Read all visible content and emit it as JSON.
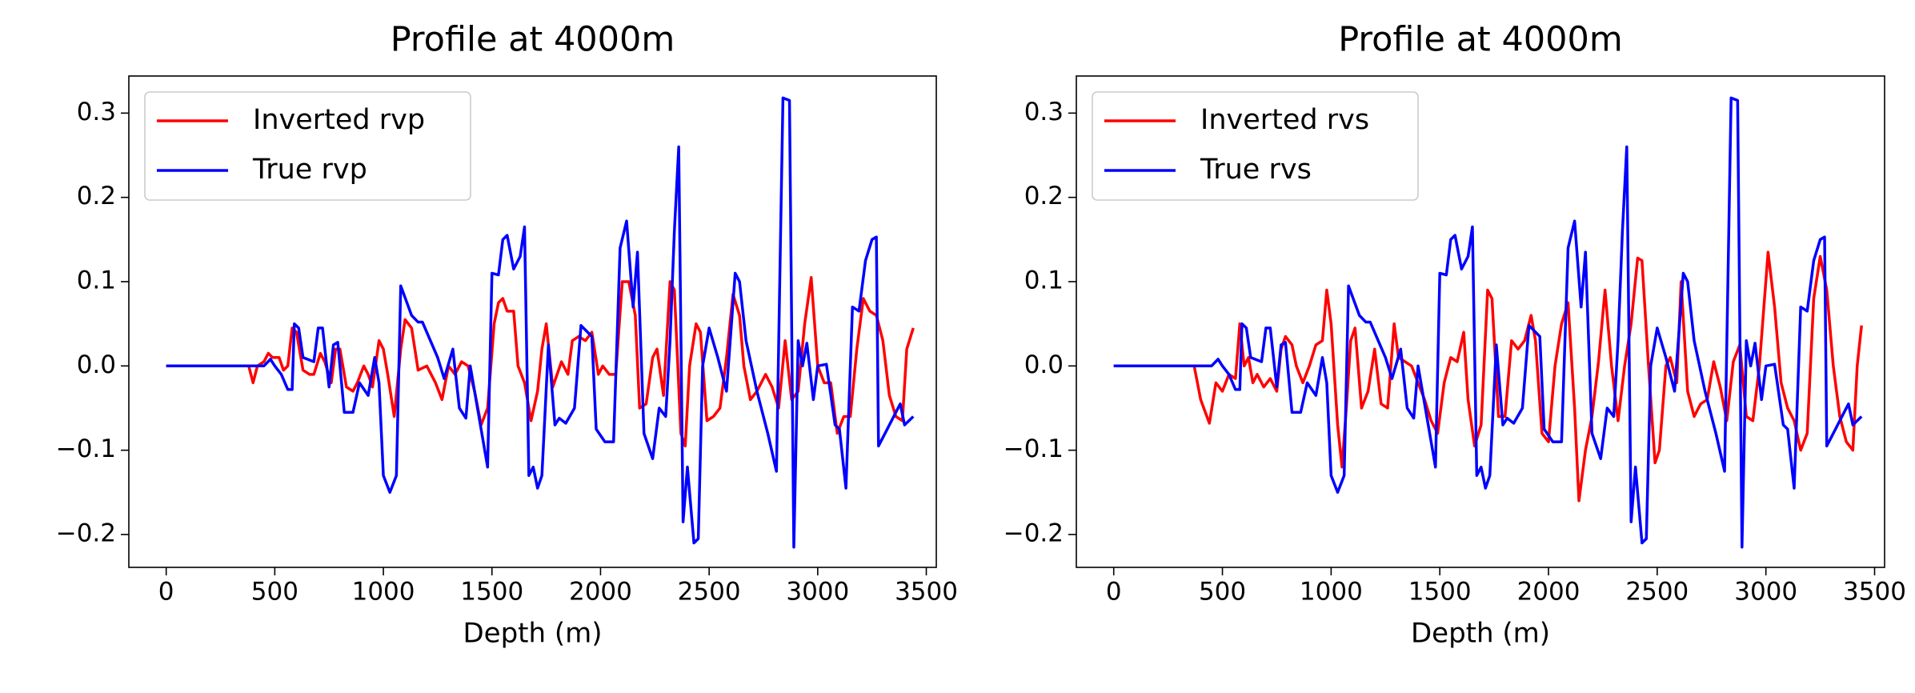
{
  "chart_data": [
    {
      "type": "line",
      "title": "Profile at 4000m",
      "xlabel": "Depth (m)",
      "xlim": [
        -172,
        3546
      ],
      "ylim": [
        -0.239,
        0.344
      ],
      "xticks": [
        0,
        500,
        1000,
        1500,
        2000,
        2500,
        3000,
        3500
      ],
      "yticks": [
        {
          "value": -0.2,
          "label": "−0.2"
        },
        {
          "value": -0.1,
          "label": "−0.1"
        },
        {
          "value": 0,
          "label": "0.0"
        },
        0.1,
        0.2,
        0.3
      ],
      "legend": "upper left",
      "series": [
        {
          "name": "Inverted rvp",
          "color": "#ff0000",
          "x": [
            0,
            380,
            400,
            420,
            450,
            470,
            490,
            520,
            540,
            560,
            580,
            600,
            630,
            660,
            680,
            710,
            730,
            760,
            780,
            800,
            830,
            860,
            880,
            910,
            930,
            950,
            980,
            1000,
            1020,
            1050,
            1080,
            1100,
            1130,
            1160,
            1200,
            1240,
            1270,
            1300,
            1330,
            1360,
            1390,
            1420,
            1450,
            1480,
            1510,
            1530,
            1550,
            1570,
            1600,
            1620,
            1650,
            1680,
            1710,
            1730,
            1750,
            1780,
            1800,
            1820,
            1850,
            1870,
            1900,
            1930,
            1960,
            1990,
            2010,
            2040,
            2070,
            2100,
            2130,
            2160,
            2180,
            2210,
            2240,
            2260,
            2290,
            2320,
            2340,
            2370,
            2390,
            2410,
            2440,
            2460,
            2490,
            2520,
            2550,
            2580,
            2610,
            2640,
            2660,
            2690,
            2720,
            2760,
            2790,
            2820,
            2850,
            2880,
            2910,
            2940,
            2970,
            3000,
            3030,
            3060,
            3090,
            3120,
            3150,
            3180,
            3210,
            3240,
            3270,
            3300,
            3330,
            3360,
            3390,
            3410,
            3440
          ],
          "values": [
            0,
            0,
            -0.02,
            0,
            0.005,
            0.015,
            0.01,
            0.01,
            -0.005,
            0,
            0.045,
            0.04,
            -0.005,
            -0.01,
            -0.01,
            0.015,
            0.005,
            -0.02,
            0.02,
            0.02,
            -0.025,
            -0.03,
            -0.02,
            0,
            -0.01,
            -0.025,
            0.03,
            0.02,
            -0.01,
            -0.06,
            0.02,
            0.055,
            0.045,
            -0.005,
            0,
            -0.02,
            -0.04,
            0,
            -0.01,
            0.005,
            0,
            -0.03,
            -0.07,
            -0.05,
            0.05,
            0.075,
            0.08,
            0.065,
            0.065,
            0,
            -0.02,
            -0.065,
            -0.03,
            0.02,
            0.05,
            -0.025,
            -0.01,
            0.005,
            -0.01,
            0.03,
            0.035,
            0.03,
            0.04,
            -0.01,
            0,
            -0.01,
            -0.01,
            0.1,
            0.1,
            0.06,
            -0.05,
            -0.045,
            0.01,
            0.02,
            -0.035,
            0.1,
            0.09,
            -0.08,
            -0.095,
            0,
            0.05,
            0.04,
            -0.065,
            -0.06,
            -0.05,
            0.01,
            0.085,
            0.06,
            0,
            -0.04,
            -0.03,
            -0.01,
            -0.025,
            -0.05,
            0.03,
            -0.04,
            -0.03,
            0.05,
            0.105,
            0,
            -0.02,
            -0.02,
            -0.08,
            -0.06,
            -0.06,
            0.02,
            0.08,
            0.065,
            0.06,
            0.03,
            -0.035,
            -0.06,
            -0.065,
            0.02,
            0.045
          ]
        },
        {
          "name": "True rvp",
          "color": "#0000ff",
          "x": [
            0,
            450,
            480,
            500,
            530,
            560,
            580,
            590,
            610,
            630,
            680,
            700,
            720,
            750,
            770,
            790,
            820,
            860,
            890,
            930,
            960,
            980,
            1000,
            1030,
            1060,
            1080,
            1130,
            1160,
            1180,
            1250,
            1280,
            1320,
            1350,
            1380,
            1400,
            1440,
            1480,
            1500,
            1530,
            1550,
            1570,
            1600,
            1630,
            1650,
            1670,
            1690,
            1710,
            1730,
            1760,
            1790,
            1810,
            1840,
            1880,
            1910,
            1960,
            1980,
            2020,
            2060,
            2090,
            2120,
            2150,
            2170,
            2200,
            2240,
            2270,
            2300,
            2320,
            2340,
            2360,
            2380,
            2400,
            2430,
            2450,
            2470,
            2500,
            2540,
            2580,
            2620,
            2640,
            2670,
            2720,
            2770,
            2810,
            2840,
            2870,
            2890,
            2910,
            2930,
            2950,
            2980,
            3000,
            3040,
            3080,
            3100,
            3130,
            3160,
            3190,
            3220,
            3250,
            3270,
            3280,
            3320,
            3350,
            3380,
            3400,
            3440
          ],
          "values": [
            0,
            0,
            0.008,
            0,
            -0.01,
            -0.028,
            -0.028,
            0.05,
            0.045,
            0.01,
            0.005,
            0.045,
            0.045,
            -0.025,
            0.025,
            0.028,
            -0.055,
            -0.055,
            -0.02,
            -0.035,
            0.01,
            -0.02,
            -0.13,
            -0.15,
            -0.13,
            0.095,
            0.06,
            0.052,
            0.052,
            0.01,
            -0.015,
            0.02,
            -0.05,
            -0.062,
            0,
            -0.06,
            -0.12,
            0.11,
            0.108,
            0.15,
            0.155,
            0.115,
            0.13,
            0.165,
            -0.13,
            -0.12,
            -0.145,
            -0.13,
            0.025,
            -0.07,
            -0.062,
            -0.068,
            -0.05,
            0.048,
            0.035,
            -0.075,
            -0.09,
            -0.09,
            0.14,
            0.172,
            0.07,
            0.135,
            -0.08,
            -0.11,
            -0.05,
            -0.06,
            0.03,
            0.16,
            0.26,
            -0.185,
            -0.12,
            -0.21,
            -0.205,
            0,
            0.045,
            0.01,
            -0.03,
            0.11,
            0.1,
            0.03,
            -0.03,
            -0.08,
            -0.125,
            0.318,
            0.315,
            -0.215,
            0.03,
            0,
            0.027,
            -0.04,
            0,
            0.002,
            -0.07,
            -0.075,
            -0.145,
            0.07,
            0.065,
            0.125,
            0.15,
            0.153,
            -0.095,
            -0.075,
            -0.06,
            -0.045,
            -0.07,
            -0.06
          ]
        }
      ]
    },
    {
      "type": "line",
      "title": "Profile at 4000m",
      "xlabel": "Depth (m)",
      "xlim": [
        -172,
        3546
      ],
      "ylim": [
        -0.239,
        0.344
      ],
      "xticks": [
        0,
        500,
        1000,
        1500,
        2000,
        2500,
        3000,
        3500
      ],
      "yticks": [
        {
          "value": -0.2,
          "label": "−0.2"
        },
        {
          "value": -0.1,
          "label": "−0.1"
        },
        {
          "value": 0,
          "label": "0.0"
        },
        0.1,
        0.2,
        0.3
      ],
      "legend": "upper left",
      "series": [
        {
          "name": "Inverted rvs",
          "color": "#ff0000",
          "x": [
            0,
            370,
            400,
            440,
            470,
            500,
            530,
            560,
            580,
            600,
            620,
            640,
            660,
            690,
            720,
            750,
            770,
            790,
            820,
            840,
            870,
            900,
            930,
            960,
            980,
            1000,
            1030,
            1050,
            1070,
            1090,
            1110,
            1140,
            1170,
            1200,
            1230,
            1260,
            1290,
            1310,
            1340,
            1370,
            1400,
            1430,
            1460,
            1490,
            1520,
            1550,
            1580,
            1610,
            1630,
            1660,
            1690,
            1720,
            1740,
            1770,
            1800,
            1830,
            1860,
            1890,
            1920,
            1940,
            1970,
            2000,
            2030,
            2060,
            2090,
            2120,
            2140,
            2170,
            2200,
            2230,
            2260,
            2290,
            2320,
            2350,
            2380,
            2410,
            2430,
            2460,
            2490,
            2510,
            2540,
            2560,
            2590,
            2610,
            2640,
            2670,
            2700,
            2730,
            2760,
            2790,
            2820,
            2850,
            2880,
            2910,
            2940,
            2970,
            3010,
            3040,
            3070,
            3100,
            3130,
            3160,
            3190,
            3220,
            3250,
            3280,
            3310,
            3340,
            3370,
            3400,
            3420,
            3440
          ],
          "values": [
            0,
            0,
            -0.04,
            -0.068,
            -0.02,
            -0.03,
            -0.01,
            -0.015,
            0.05,
            0,
            0.01,
            -0.02,
            -0.01,
            -0.025,
            -0.015,
            -0.03,
            0.02,
            0.035,
            0.025,
            0,
            -0.02,
            0,
            0.025,
            0.03,
            0.09,
            0.05,
            -0.07,
            -0.12,
            -0.05,
            0.03,
            0.045,
            -0.05,
            -0.03,
            0.02,
            -0.045,
            -0.05,
            0.05,
            0.01,
            0.005,
            0,
            -0.02,
            -0.04,
            -0.065,
            -0.08,
            -0.02,
            0.01,
            0.005,
            0.04,
            -0.04,
            -0.095,
            -0.07,
            0.09,
            0.08,
            -0.06,
            -0.06,
            0.03,
            0.02,
            0.03,
            0.06,
            0.03,
            -0.08,
            -0.09,
            0,
            0.05,
            0.075,
            -0.05,
            -0.16,
            -0.1,
            -0.06,
            0.005,
            0.09,
            0,
            -0.065,
            0,
            0.05,
            0.128,
            0.125,
            0,
            -0.115,
            -0.1,
            0,
            0.01,
            -0.02,
            0.1,
            -0.03,
            -0.06,
            -0.045,
            -0.04,
            0.005,
            -0.025,
            -0.065,
            0.005,
            0.025,
            -0.06,
            -0.065,
            0,
            0.135,
            0.07,
            -0.02,
            -0.05,
            -0.065,
            -0.1,
            -0.08,
            0.08,
            0.13,
            0.09,
            0,
            -0.06,
            -0.09,
            -0.1,
            0,
            0.048
          ]
        },
        {
          "name": "True rvs",
          "color": "#0000ff",
          "x": [
            0,
            450,
            480,
            500,
            530,
            560,
            580,
            590,
            610,
            630,
            680,
            700,
            720,
            750,
            770,
            790,
            820,
            860,
            890,
            930,
            960,
            980,
            1000,
            1030,
            1060,
            1080,
            1130,
            1160,
            1180,
            1250,
            1280,
            1320,
            1350,
            1380,
            1400,
            1440,
            1480,
            1500,
            1530,
            1550,
            1570,
            1600,
            1630,
            1650,
            1670,
            1690,
            1710,
            1730,
            1760,
            1790,
            1810,
            1840,
            1880,
            1910,
            1960,
            1980,
            2020,
            2060,
            2090,
            2120,
            2150,
            2170,
            2200,
            2240,
            2270,
            2300,
            2320,
            2340,
            2360,
            2380,
            2400,
            2430,
            2450,
            2470,
            2500,
            2540,
            2580,
            2620,
            2640,
            2670,
            2720,
            2770,
            2810,
            2840,
            2870,
            2890,
            2910,
            2930,
            2950,
            2980,
            3000,
            3040,
            3080,
            3100,
            3130,
            3160,
            3190,
            3220,
            3250,
            3270,
            3280,
            3320,
            3350,
            3380,
            3400,
            3440
          ],
          "values": [
            0,
            0,
            0.008,
            0,
            -0.01,
            -0.028,
            -0.028,
            0.05,
            0.045,
            0.01,
            0.005,
            0.045,
            0.045,
            -0.025,
            0.025,
            0.028,
            -0.055,
            -0.055,
            -0.02,
            -0.035,
            0.01,
            -0.02,
            -0.13,
            -0.15,
            -0.13,
            0.095,
            0.06,
            0.052,
            0.052,
            0.01,
            -0.015,
            0.02,
            -0.05,
            -0.062,
            0,
            -0.06,
            -0.12,
            0.11,
            0.108,
            0.15,
            0.155,
            0.115,
            0.13,
            0.165,
            -0.13,
            -0.12,
            -0.145,
            -0.13,
            0.025,
            -0.07,
            -0.062,
            -0.068,
            -0.05,
            0.048,
            0.035,
            -0.075,
            -0.09,
            -0.09,
            0.14,
            0.172,
            0.07,
            0.135,
            -0.08,
            -0.11,
            -0.05,
            -0.06,
            0.03,
            0.16,
            0.26,
            -0.185,
            -0.12,
            -0.21,
            -0.205,
            0,
            0.045,
            0.01,
            -0.03,
            0.11,
            0.1,
            0.03,
            -0.03,
            -0.08,
            -0.125,
            0.318,
            0.315,
            -0.215,
            0.03,
            0,
            0.027,
            -0.04,
            0,
            0.002,
            -0.07,
            -0.075,
            -0.145,
            0.07,
            0.065,
            0.125,
            0.15,
            0.153,
            -0.095,
            -0.075,
            -0.06,
            -0.045,
            -0.07,
            -0.06
          ]
        }
      ]
    }
  ]
}
